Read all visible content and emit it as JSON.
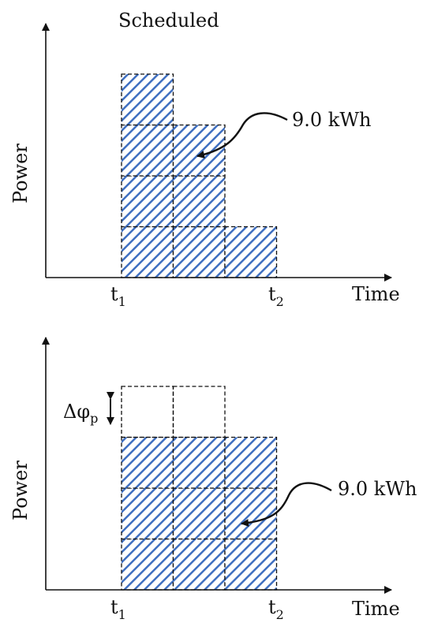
{
  "colors": {
    "fill_background": "#ffffff",
    "hatch": "#3f6fc0",
    "line": "#111111"
  },
  "top_panel": {
    "title": "Scheduled",
    "y_axis_label": "Power",
    "x_axis_label": "Time",
    "tick_t1": {
      "base": "t",
      "sub": "1"
    },
    "tick_t2": {
      "base": "t",
      "sub": "2"
    },
    "energy_label": "9.0 kWh",
    "blocks_per_column": [
      4,
      3,
      1
    ],
    "block_style": "hatched"
  },
  "bottom_panel": {
    "title": "",
    "y_axis_label": "Power",
    "x_axis_label": "Time",
    "tick_t1": {
      "base": "t",
      "sub": "1"
    },
    "tick_t2": {
      "base": "t",
      "sub": "2"
    },
    "energy_label": "9.0 kWh",
    "blocks_per_column": [
      3,
      3,
      3
    ],
    "removed_blocks_per_column": [
      1,
      1,
      0
    ],
    "block_style": "hatched",
    "delta_label": {
      "base": "Δφ",
      "sub": "p"
    }
  }
}
